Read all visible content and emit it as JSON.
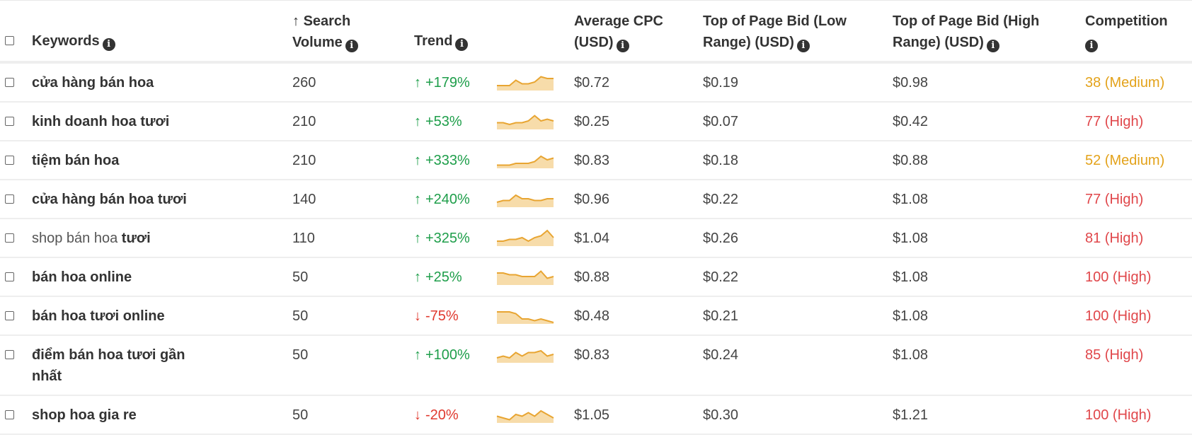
{
  "header": {
    "keywords": "Keywords",
    "search_volume_line1": "Search",
    "search_volume_line2": "Volume",
    "sort_icon": "arrow-up-icon",
    "trend": "Trend",
    "avg_cpc_line1": "Average CPC",
    "avg_cpc_line2": "(USD)",
    "low_bid_line1": "Top of Page Bid (Low",
    "low_bid_line2": "Range) (USD)",
    "high_bid_line1": "Top of Page Bid (High",
    "high_bid_line2": "Range) (USD)",
    "competition": "Competition",
    "info_icon": "info-icon"
  },
  "colors": {
    "up": "#1e9e4a",
    "down": "#e03a2f",
    "medium": "#e3a21a",
    "high": "#e0464a",
    "sparkline": "#e8a532",
    "sparkline_fill": "#f7dcaa"
  },
  "rows": [
    {
      "keyword_bold": "cửa hàng bán hoa",
      "keyword_light": "",
      "keyword_bold2": "",
      "keyword_line2": "",
      "volume": "260",
      "trend_dir": "up",
      "trend": "+179%",
      "spark": [
        2,
        2,
        2,
        5,
        3,
        3,
        4,
        7,
        6,
        6
      ],
      "cpc": "$0.72",
      "low": "$0.19",
      "high": "$0.98",
      "competition": "38 (Medium)",
      "level": "medium"
    },
    {
      "keyword_bold": "kinh doanh hoa tươi",
      "keyword_light": "",
      "keyword_bold2": "",
      "keyword_line2": "",
      "volume": "210",
      "trend_dir": "up",
      "trend": "+53%",
      "spark": [
        3,
        3,
        2,
        3,
        3,
        4,
        7,
        4,
        5,
        4
      ],
      "cpc": "$0.25",
      "low": "$0.07",
      "high": "$0.42",
      "competition": "77 (High)",
      "level": "high"
    },
    {
      "keyword_bold": "tiệm bán hoa",
      "keyword_light": "",
      "keyword_bold2": "",
      "keyword_line2": "",
      "volume": "210",
      "trend_dir": "up",
      "trend": "+333%",
      "spark": [
        1,
        1,
        1,
        2,
        2,
        2,
        3,
        6,
        4,
        5
      ],
      "cpc": "$0.83",
      "low": "$0.18",
      "high": "$0.88",
      "competition": "52 (Medium)",
      "level": "medium"
    },
    {
      "keyword_bold": "cửa hàng bán hoa tươi",
      "keyword_light": "",
      "keyword_bold2": "",
      "keyword_line2": "",
      "volume": "140",
      "trend_dir": "up",
      "trend": "+240%",
      "spark": [
        2,
        3,
        3,
        6,
        4,
        4,
        3,
        3,
        4,
        4
      ],
      "cpc": "$0.96",
      "low": "$0.22",
      "high": "$1.08",
      "competition": "77 (High)",
      "level": "high"
    },
    {
      "keyword_bold": "",
      "keyword_light": "shop bán hoa ",
      "keyword_bold2": "tươi",
      "keyword_line2": "",
      "volume": "110",
      "trend_dir": "up",
      "trend": "+325%",
      "spark": [
        2,
        2,
        3,
        3,
        4,
        2,
        4,
        5,
        8,
        4
      ],
      "cpc": "$1.04",
      "low": "$0.26",
      "high": "$1.08",
      "competition": "81 (High)",
      "level": "high"
    },
    {
      "keyword_bold": "bán hoa online",
      "keyword_light": "",
      "keyword_bold2": "",
      "keyword_line2": "",
      "volume": "50",
      "trend_dir": "up",
      "trend": "+25%",
      "spark": [
        6,
        6,
        5,
        5,
        4,
        4,
        4,
        7,
        3,
        4
      ],
      "cpc": "$0.88",
      "low": "$0.22",
      "high": "$1.08",
      "competition": "100 (High)",
      "level": "high"
    },
    {
      "keyword_bold": "bán hoa tươi online",
      "keyword_light": "",
      "keyword_bold2": "",
      "keyword_line2": "",
      "volume": "50",
      "trend_dir": "down",
      "trend": "-75%",
      "spark": [
        6,
        6,
        6,
        5,
        2,
        2,
        1,
        2,
        1,
        0
      ],
      "cpc": "$0.48",
      "low": "$0.21",
      "high": "$1.08",
      "competition": "100 (High)",
      "level": "high"
    },
    {
      "keyword_bold": "điểm bán hoa tươi gần",
      "keyword_light": "",
      "keyword_bold2": "",
      "keyword_line2": "nhất",
      "volume": "50",
      "trend_dir": "up",
      "trend": "+100%",
      "spark": [
        2,
        3,
        2,
        5,
        3,
        5,
        5,
        6,
        3,
        4
      ],
      "cpc": "$0.83",
      "low": "$0.24",
      "high": "$1.08",
      "competition": "85 (High)",
      "level": "high"
    },
    {
      "keyword_bold": "shop hoa gia re",
      "keyword_light": "",
      "keyword_bold2": "",
      "keyword_line2": "",
      "volume": "50",
      "trend_dir": "down",
      "trend": "-20%",
      "spark": [
        3,
        2,
        1,
        4,
        3,
        5,
        3,
        6,
        4,
        2
      ],
      "cpc": "$1.05",
      "low": "$0.30",
      "high": "$1.21",
      "competition": "100 (High)",
      "level": "high"
    }
  ]
}
